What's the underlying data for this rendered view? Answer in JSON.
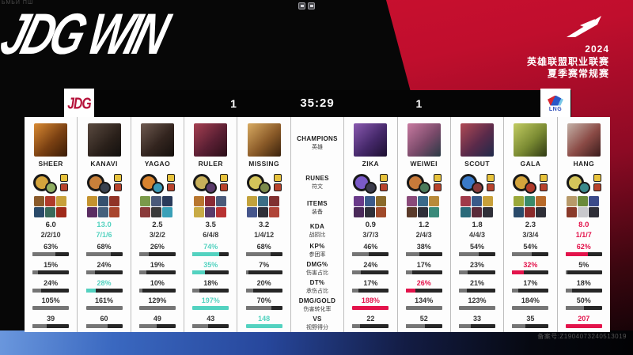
{
  "meta": {
    "win_banner": "JDG WIN",
    "corner_text": "ЬМЬИ ПШ"
  },
  "event": {
    "year": "2024",
    "line1": "英雄联盟职业联赛",
    "line2": "夏季赛常规赛"
  },
  "scoreboard": {
    "left_team": "JDG",
    "left_score": "1",
    "timer": "35:29",
    "right_score": "1",
    "right_team": "LNG"
  },
  "stat_labels": [
    {
      "en": "CHAMPIONS",
      "zh": "英雄"
    },
    {
      "en": "RUNES",
      "zh": "符文"
    },
    {
      "en": "ITEMS",
      "zh": "装备"
    },
    {
      "en": "KDA",
      "zh": "战损比"
    },
    {
      "en": "KP%",
      "zh": "参团率"
    },
    {
      "en": "DMG%",
      "zh": "伤害占比"
    },
    {
      "en": "DT%",
      "zh": "承伤占比"
    },
    {
      "en": "DMG/GOLD",
      "zh": "伤害转化率"
    },
    {
      "en": "VS",
      "zh": "视野得分"
    }
  ],
  "players": {
    "left": [
      {
        "name": "SHEER",
        "portrait": "linear-gradient(135deg,#d98a33,#7a4012 55%,#3a1c06)",
        "runes": [
          "#d4a43c",
          "#8fae62"
        ],
        "items": [
          "#8a5a2a",
          "#b03a2a",
          "#c8a03a",
          "#2a4a6a",
          "#3a6a5a",
          "#a02a1a"
        ],
        "kda": "6.0",
        "kda_detail": "2/2/10",
        "kda_hl": false,
        "hlc": "teal",
        "stats": [
          {
            "value": "63%",
            "fill": 63,
            "hl": false
          },
          {
            "value": "15%",
            "fill": 15,
            "hl": false
          },
          {
            "value": "24%",
            "fill": 24,
            "hl": false
          },
          {
            "value": "105%",
            "fill": 100,
            "hl": false
          },
          {
            "value": "39",
            "fill": 39,
            "hl": false
          }
        ]
      },
      {
        "name": "KANAVI",
        "portrait": "linear-gradient(135deg,#5a4a40,#2a201a 60%,#12100e)",
        "runes": [
          "#c8803a",
          "#39414e"
        ],
        "items": [
          "#c4932f",
          "#35506e",
          "#913326",
          "#5a2d62",
          "#46617d",
          "#a8442c"
        ],
        "kda": "13.0",
        "kda_detail": "7/1/6",
        "kda_hl": true,
        "hlc": "teal",
        "stats": [
          {
            "value": "68%",
            "fill": 68,
            "hl": false
          },
          {
            "value": "24%",
            "fill": 24,
            "hl": false
          },
          {
            "value": "28%",
            "fill": 28,
            "hl": true,
            "hlc": "teal"
          },
          {
            "value": "161%",
            "fill": 100,
            "hl": false
          },
          {
            "value": "60",
            "fill": 60,
            "hl": false
          }
        ]
      },
      {
        "name": "YAGAO",
        "portrait": "linear-gradient(135deg,#6e5a50,#33251f 55%,#15100d)",
        "runes": [
          "#d8832f",
          "#3a9ab8"
        ],
        "items": [
          "#7a9a4a",
          "#4a5a7a",
          "#2a3a5a",
          "#8a3a3a",
          "#3a3a3a",
          "#3aa0b8"
        ],
        "kda": "2.5",
        "kda_detail": "3/2/2",
        "kda_hl": false,
        "hlc": "teal",
        "stats": [
          {
            "value": "26%",
            "fill": 26,
            "hl": false
          },
          {
            "value": "19%",
            "fill": 19,
            "hl": false
          },
          {
            "value": "10%",
            "fill": 10,
            "hl": false
          },
          {
            "value": "129%",
            "fill": 100,
            "hl": false
          },
          {
            "value": "49",
            "fill": 49,
            "hl": false
          }
        ]
      },
      {
        "name": "RULER",
        "portrait": "linear-gradient(135deg,#a64052,#5a1f33 55%,#2a0e18)",
        "runes": [
          "#c8b05a",
          "#5a3a6a"
        ],
        "items": [
          "#b8762f",
          "#8a2a35",
          "#4a5a7a",
          "#c8ab46",
          "#5a3a6a",
          "#b83232"
        ],
        "kda": "3.5",
        "kda_detail": "6/4/8",
        "kda_hl": false,
        "hlc": "teal",
        "stats": [
          {
            "value": "74%",
            "fill": 74,
            "hl": true,
            "hlc": "teal"
          },
          {
            "value": "35%",
            "fill": 35,
            "hl": true,
            "hlc": "teal"
          },
          {
            "value": "18%",
            "fill": 18,
            "hl": false
          },
          {
            "value": "197%",
            "fill": 100,
            "hl": true,
            "hlc": "teal"
          },
          {
            "value": "43",
            "fill": 43,
            "hl": false
          }
        ]
      },
      {
        "name": "MISSING",
        "portrait": "linear-gradient(135deg,#d8ab62,#8a5a28 55%,#3a220c)",
        "runes": [
          "#d4c45a",
          "#7a8a4a"
        ],
        "items": [
          "#c2a23c",
          "#3c6e86",
          "#803030",
          "#46568c",
          "#2f2f38",
          "#b04438"
        ],
        "kda": "3.2",
        "kda_detail": "1/4/12",
        "kda_hl": false,
        "hlc": "teal",
        "stats": [
          {
            "value": "68%",
            "fill": 68,
            "hl": false
          },
          {
            "value": "7%",
            "fill": 7,
            "hl": false
          },
          {
            "value": "20%",
            "fill": 20,
            "hl": false
          },
          {
            "value": "70%",
            "fill": 70,
            "hl": false
          },
          {
            "value": "148",
            "fill": 100,
            "hl": true,
            "hlc": "teal"
          }
        ]
      }
    ],
    "right": [
      {
        "name": "ZIKA",
        "portrait": "linear-gradient(135deg,#8a5ab0,#45286a 55%,#1c0f30)",
        "runes": [
          "#7a5ac8",
          "#3a3a4a"
        ],
        "items": [
          "#6a3a8a",
          "#3a5a8a",
          "#8a6a2a",
          "#4a2a5a",
          "#2f2f38",
          "#a04a2a"
        ],
        "kda": "0.9",
        "kda_detail": "3/7/3",
        "kda_hl": false,
        "hlc": "red",
        "stats": [
          {
            "value": "46%",
            "fill": 46,
            "hl": false
          },
          {
            "value": "24%",
            "fill": 24,
            "hl": false
          },
          {
            "value": "17%",
            "fill": 17,
            "hl": false
          },
          {
            "value": "188%",
            "fill": 100,
            "hl": true,
            "hlc": "red"
          },
          {
            "value": "22",
            "fill": 22,
            "hl": false
          }
        ]
      },
      {
        "name": "WEIWEI",
        "portrait": "linear-gradient(135deg,#c87aa0,#7a4a6a 55%,#2a3a45)",
        "runes": [
          "#c87a3a",
          "#4a7a5a"
        ],
        "items": [
          "#8a4a7a",
          "#3a6a8a",
          "#b88a3a",
          "#5a3a2a",
          "#2f2f38",
          "#3a8a7a"
        ],
        "kda": "1.2",
        "kda_detail": "2/4/3",
        "kda_hl": false,
        "hlc": "red",
        "stats": [
          {
            "value": "38%",
            "fill": 38,
            "hl": false
          },
          {
            "value": "17%",
            "fill": 17,
            "hl": false
          },
          {
            "value": "26%",
            "fill": 26,
            "hl": true,
            "hlc": "red"
          },
          {
            "value": "134%",
            "fill": 100,
            "hl": false
          },
          {
            "value": "52",
            "fill": 52,
            "hl": false
          }
        ]
      },
      {
        "name": "SCOUT",
        "portrait": "linear-gradient(135deg,#b04a55,#5a2a4a 55%,#1f2a4a)",
        "runes": [
          "#3a7ac8",
          "#8a3a3a"
        ],
        "items": [
          "#a03a4a",
          "#3a5a8a",
          "#c8a03a",
          "#2a6a7a",
          "#5a2a3a",
          "#2f2f38"
        ],
        "kda": "1.8",
        "kda_detail": "4/4/3",
        "kda_hl": false,
        "hlc": "red",
        "stats": [
          {
            "value": "54%",
            "fill": 54,
            "hl": false
          },
          {
            "value": "23%",
            "fill": 23,
            "hl": false
          },
          {
            "value": "21%",
            "fill": 21,
            "hl": false
          },
          {
            "value": "123%",
            "fill": 100,
            "hl": false
          },
          {
            "value": "33",
            "fill": 33,
            "hl": false
          }
        ]
      },
      {
        "name": "GALA",
        "portrait": "linear-gradient(135deg,#c2cc62,#7a8a32 55%,#2f3a14)",
        "runes": [
          "#d4a43c",
          "#b03a2a"
        ],
        "items": [
          "#9aa83a",
          "#3a8a6a",
          "#b86a2a",
          "#2a4a6a",
          "#8a2a2a",
          "#2f2f38"
        ],
        "kda": "2.3",
        "kda_detail": "3/3/4",
        "kda_hl": false,
        "hlc": "red",
        "stats": [
          {
            "value": "54%",
            "fill": 54,
            "hl": false
          },
          {
            "value": "32%",
            "fill": 32,
            "hl": true,
            "hlc": "red"
          },
          {
            "value": "17%",
            "fill": 17,
            "hl": false
          },
          {
            "value": "184%",
            "fill": 100,
            "hl": false
          },
          {
            "value": "35",
            "fill": 35,
            "hl": false
          }
        ]
      },
      {
        "name": "HANG",
        "portrait": "linear-gradient(135deg,#c4b2a8,#8a4a45 55%,#3a1c1c)",
        "runes": [
          "#d4c45a",
          "#3a8a8a"
        ],
        "items": [
          "#b89a6a",
          "#6a8a3a",
          "#3a4a8a",
          "#8a3a2a",
          "#c8c8cc",
          "#2f2f38"
        ],
        "kda": "8.0",
        "kda_detail": "1/1/7",
        "kda_hl": true,
        "hlc": "red",
        "stats": [
          {
            "value": "62%",
            "fill": 62,
            "hl": true,
            "hlc": "red"
          },
          {
            "value": "5%",
            "fill": 5,
            "hl": false
          },
          {
            "value": "18%",
            "fill": 18,
            "hl": false
          },
          {
            "value": "50%",
            "fill": 50,
            "hl": false
          },
          {
            "value": "207",
            "fill": 100,
            "hl": true,
            "hlc": "red"
          }
        ]
      }
    ]
  },
  "footer": {
    "registration": "备案号:Z1904073240513019"
  },
  "colors": {
    "teal": "#53d2c0",
    "red": "#e3134b",
    "shard_top": "#e7c23c",
    "shard_bottom": "#b8432c"
  }
}
